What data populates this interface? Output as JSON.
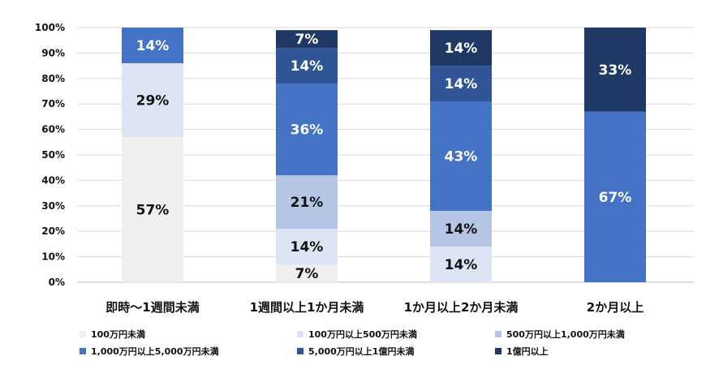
{
  "chart_data": {
    "type": "bar",
    "stacked": true,
    "title": "",
    "xlabel": "",
    "ylabel": "",
    "ylim": [
      0,
      100
    ],
    "y_ticks": [
      "0%",
      "10%",
      "20%",
      "30%",
      "40%",
      "50%",
      "60%",
      "70%",
      "80%",
      "90%",
      "100%"
    ],
    "grid": true,
    "legend_position": "bottom",
    "categories": [
      "即時～1週間未満",
      "1週間以上1か月未満",
      "1か月以上2か月未満",
      "2か月以上"
    ],
    "series": [
      {
        "name": "100万円未満",
        "color": "#efefef",
        "label_color": "#111111",
        "values": [
          57,
          7,
          0,
          0
        ],
        "labels": [
          "57%",
          "7%",
          "",
          ""
        ]
      },
      {
        "name": "100万円以上500万円未満",
        "color": "#dde5f4",
        "label_color": "#111111",
        "values": [
          29,
          14,
          14,
          0
        ],
        "labels": [
          "29%",
          "14%",
          "14%",
          ""
        ]
      },
      {
        "name": "500万円以上1,000万円未満",
        "color": "#b4c5e6",
        "label_color": "#111111",
        "values": [
          0,
          21,
          14,
          0
        ],
        "labels": [
          "",
          "21%",
          "14%",
          ""
        ]
      },
      {
        "name": "1,000万円以上5,000万円未満",
        "color": "#4472c4",
        "label_color": "#ffffff",
        "values": [
          14,
          36,
          43,
          67
        ],
        "labels": [
          "14%",
          "36%",
          "43%",
          "67%"
        ]
      },
      {
        "name": "5,000万円以上1億円未満",
        "color": "#2f5597",
        "label_color": "#ffffff",
        "values": [
          0,
          14,
          14,
          0
        ],
        "labels": [
          "",
          "14%",
          "14%",
          ""
        ]
      },
      {
        "name": "1億円以上",
        "color": "#1f3864",
        "label_color": "#ffffff",
        "values": [
          0,
          7,
          14,
          33
        ],
        "labels": [
          "",
          "7%",
          "14%",
          "33%"
        ]
      }
    ]
  }
}
